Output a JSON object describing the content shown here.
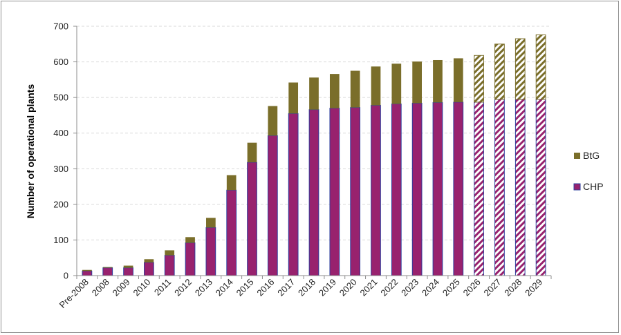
{
  "chart_data": {
    "type": "bar",
    "stacked": true,
    "title": "",
    "xlabel": "",
    "ylabel": "Number of operational plants",
    "ylim": [
      0,
      700
    ],
    "yticks": [
      0,
      100,
      200,
      300,
      400,
      500,
      600,
      700
    ],
    "grid": true,
    "legend_position": "right",
    "categories": [
      "Pre-2008",
      "2008",
      "2009",
      "2010",
      "2011",
      "2012",
      "2013",
      "2014",
      "2015",
      "2016",
      "2017",
      "2018",
      "2019",
      "2020",
      "2021",
      "2022",
      "2023",
      "2024",
      "2025",
      "2026",
      "2027",
      "2028",
      "2029"
    ],
    "projected_categories": [
      "2026",
      "2027",
      "2028",
      "2029"
    ],
    "series": [
      {
        "name": "CHP",
        "color": "#98226e",
        "values": [
          13,
          22,
          22,
          37,
          57,
          92,
          135,
          240,
          318,
          393,
          455,
          466,
          470,
          472,
          478,
          482,
          484,
          486,
          487,
          487,
          495,
          495,
          495
        ]
      },
      {
        "name": "BtG",
        "color": "#7a6e2a",
        "values": [
          3,
          2,
          6,
          9,
          14,
          16,
          27,
          42,
          55,
          83,
          87,
          90,
          96,
          103,
          109,
          113,
          117,
          119,
          123,
          131,
          155,
          170,
          181
        ]
      }
    ],
    "legend": [
      {
        "name": "BtG",
        "color": "#7a6e2a"
      },
      {
        "name": "CHP",
        "color": "#98226e"
      }
    ]
  }
}
